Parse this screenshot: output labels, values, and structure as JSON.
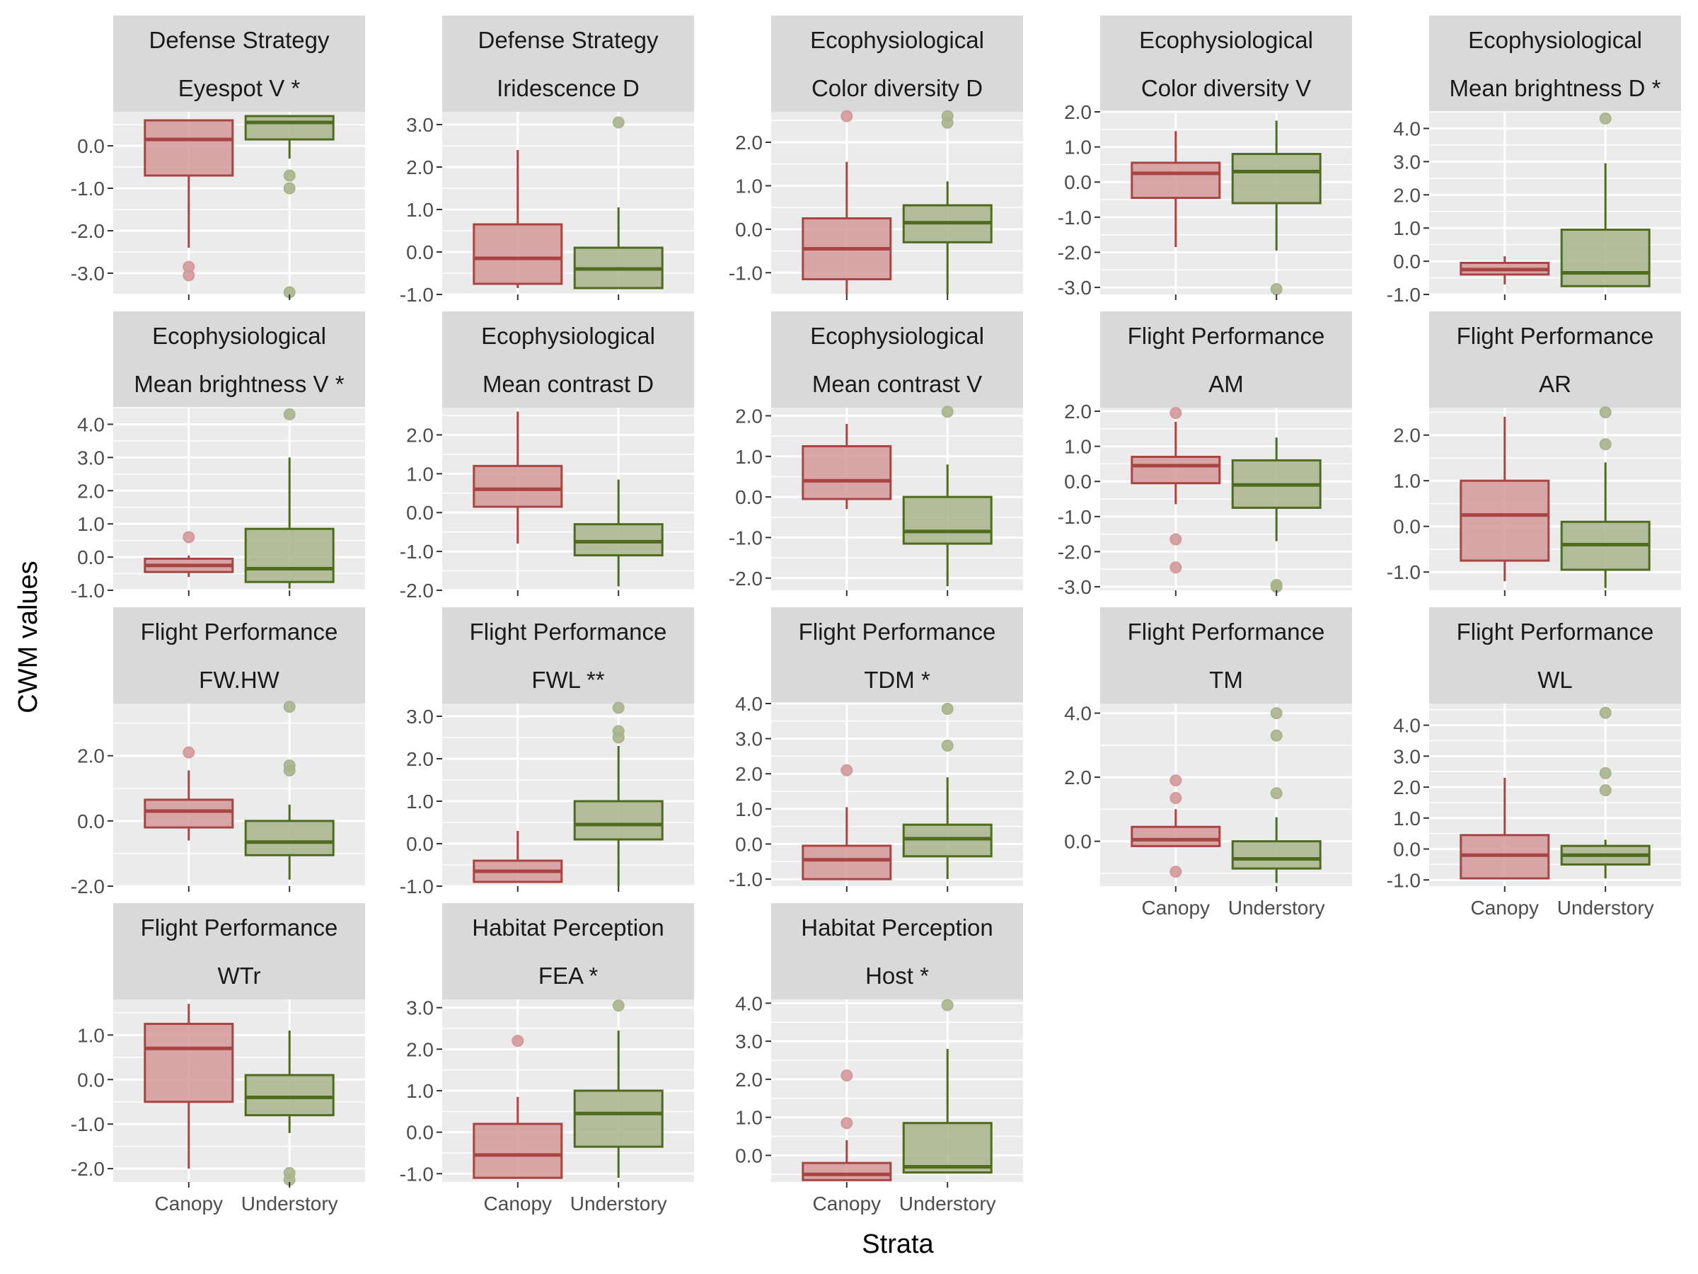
{
  "chart_data": {
    "type": "boxplot",
    "xlabel": "Strata",
    "ylabel": "CWM values",
    "categories": [
      "Canopy",
      "Understory"
    ],
    "colors": {
      "Canopy": {
        "stroke": "#a94442",
        "fill": "#d4999a"
      },
      "Understory": {
        "stroke": "#4e6b1e",
        "fill": "#a8b48c"
      }
    },
    "panels": [
      {
        "group": "Defense Strategy",
        "trait": "Eyespot V *",
        "ylim": [
          -3.5,
          0.8
        ],
        "yticks": [
          0,
          -1,
          -2,
          -3
        ],
        "ytick_labels": [
          "0.0",
          "-1.0",
          "-2.0",
          "-3.0"
        ],
        "boxes": [
          {
            "q1": -0.7,
            "median": 0.15,
            "q3": 0.6,
            "whisker_low": -2.4,
            "whisker_high": 0.6,
            "outliers": [
              -2.85,
              -3.05
            ]
          },
          {
            "q1": 0.15,
            "median": 0.55,
            "q3": 0.7,
            "whisker_low": -0.3,
            "whisker_high": 0.7,
            "outliers": [
              -0.7,
              -1.0,
              -3.45
            ]
          }
        ]
      },
      {
        "group": "Defense Strategy",
        "trait": "Iridescence D",
        "ylim": [
          -1.0,
          3.3
        ],
        "yticks": [
          3,
          2,
          1,
          0,
          -1
        ],
        "ytick_labels": [
          "3.0",
          "2.0",
          "1.0",
          "0.0",
          "-1.0"
        ],
        "boxes": [
          {
            "q1": -0.75,
            "median": -0.15,
            "q3": 0.65,
            "whisker_low": -0.85,
            "whisker_high": 2.4,
            "outliers": []
          },
          {
            "q1": -0.85,
            "median": -0.4,
            "q3": 0.1,
            "whisker_low": -0.85,
            "whisker_high": 1.05,
            "outliers": [
              3.05
            ]
          }
        ]
      },
      {
        "group": "Ecophysiological",
        "trait": "Color diversity D",
        "ylim": [
          -1.5,
          2.7
        ],
        "yticks": [
          2,
          1,
          0,
          -1
        ],
        "ytick_labels": [
          "2.0",
          "1.0",
          "0.0",
          "-1.0"
        ],
        "boxes": [
          {
            "q1": -1.15,
            "median": -0.45,
            "q3": 0.25,
            "whisker_low": -1.5,
            "whisker_high": 1.55,
            "outliers": [
              2.6
            ]
          },
          {
            "q1": -0.3,
            "median": 0.15,
            "q3": 0.55,
            "whisker_low": -1.5,
            "whisker_high": 1.1,
            "outliers": [
              2.6,
              2.45
            ]
          }
        ]
      },
      {
        "group": "Ecophysiological",
        "trait": "Color diversity V",
        "ylim": [
          -3.2,
          2.0
        ],
        "yticks": [
          2,
          1,
          0,
          -1,
          -2,
          -3
        ],
        "ytick_labels": [
          "2.0",
          "1.0",
          "0.0",
          "-1.0",
          "-2.0",
          "-3.0"
        ],
        "boxes": [
          {
            "q1": -0.45,
            "median": 0.25,
            "q3": 0.55,
            "whisker_low": -1.85,
            "whisker_high": 1.45,
            "outliers": []
          },
          {
            "q1": -0.6,
            "median": 0.3,
            "q3": 0.8,
            "whisker_low": -1.95,
            "whisker_high": 1.75,
            "outliers": [
              -3.05
            ]
          }
        ]
      },
      {
        "group": "Ecophysiological",
        "trait": "Mean brightness D *",
        "ylim": [
          -1.0,
          4.5
        ],
        "yticks": [
          4,
          3,
          2,
          1,
          0,
          -1
        ],
        "ytick_labels": [
          "4.0",
          "3.0",
          "2.0",
          "1.0",
          "0.0",
          "-1.0"
        ],
        "boxes": [
          {
            "q1": -0.4,
            "median": -0.25,
            "q3": -0.05,
            "whisker_low": -0.7,
            "whisker_high": 0.15,
            "outliers": []
          },
          {
            "q1": -0.75,
            "median": -0.35,
            "q3": 0.95,
            "whisker_low": -0.75,
            "whisker_high": 2.95,
            "outliers": [
              4.3
            ]
          }
        ]
      },
      {
        "group": "Ecophysiological",
        "trait": "Mean brightness V *",
        "ylim": [
          -1.0,
          4.5
        ],
        "yticks": [
          4,
          3,
          2,
          1,
          0,
          -1
        ],
        "ytick_labels": [
          "4.0",
          "3.0",
          "2.0",
          "1.0",
          "0.0",
          "-1.0"
        ],
        "boxes": [
          {
            "q1": -0.45,
            "median": -0.25,
            "q3": -0.05,
            "whisker_low": -0.6,
            "whisker_high": 0.05,
            "outliers": [
              0.6
            ]
          },
          {
            "q1": -0.75,
            "median": -0.35,
            "q3": 0.85,
            "whisker_low": -0.95,
            "whisker_high": 3.0,
            "outliers": [
              4.3
            ]
          }
        ]
      },
      {
        "group": "Ecophysiological",
        "trait": "Mean contrast D",
        "ylim": [
          -2.0,
          2.7
        ],
        "yticks": [
          2,
          1,
          0,
          -1,
          -2
        ],
        "ytick_labels": [
          "2.0",
          "1.0",
          "0.0",
          "-1.0",
          "-2.0"
        ],
        "boxes": [
          {
            "q1": 0.15,
            "median": 0.6,
            "q3": 1.2,
            "whisker_low": -0.8,
            "whisker_high": 2.6,
            "outliers": []
          },
          {
            "q1": -1.1,
            "median": -0.75,
            "q3": -0.3,
            "whisker_low": -1.9,
            "whisker_high": 0.85,
            "outliers": []
          }
        ]
      },
      {
        "group": "Ecophysiological",
        "trait": "Mean contrast V",
        "ylim": [
          -2.3,
          2.2
        ],
        "yticks": [
          2,
          1,
          0,
          -1,
          -2
        ],
        "ytick_labels": [
          "2.0",
          "1.0",
          "0.0",
          "-1.0",
          "-2.0"
        ],
        "boxes": [
          {
            "q1": -0.05,
            "median": 0.4,
            "q3": 1.25,
            "whisker_low": -0.3,
            "whisker_high": 1.8,
            "outliers": []
          },
          {
            "q1": -1.15,
            "median": -0.85,
            "q3": 0.0,
            "whisker_low": -2.2,
            "whisker_high": 0.8,
            "outliers": [
              2.1
            ]
          }
        ]
      },
      {
        "group": "Flight Performance",
        "trait": "AM",
        "ylim": [
          -3.1,
          2.1
        ],
        "yticks": [
          2,
          1,
          0,
          -1,
          -2,
          -3
        ],
        "ytick_labels": [
          "2.0",
          "1.0",
          "0.0",
          "-1.0",
          "-2.0",
          "-3.0"
        ],
        "boxes": [
          {
            "q1": -0.05,
            "median": 0.45,
            "q3": 0.7,
            "whisker_low": -0.65,
            "whisker_high": 1.7,
            "outliers": [
              1.95,
              -1.65,
              -2.45
            ]
          },
          {
            "q1": -0.75,
            "median": -0.1,
            "q3": 0.6,
            "whisker_low": -1.7,
            "whisker_high": 1.25,
            "outliers": [
              -2.95,
              -3.0
            ]
          }
        ]
      },
      {
        "group": "Flight Performance",
        "trait": "AR",
        "ylim": [
          -1.4,
          2.6
        ],
        "yticks": [
          2,
          1,
          0,
          -1
        ],
        "ytick_labels": [
          "2.0",
          "1.0",
          "0.0",
          "-1.0"
        ],
        "boxes": [
          {
            "q1": -0.75,
            "median": 0.25,
            "q3": 1.0,
            "whisker_low": -1.2,
            "whisker_high": 2.4,
            "outliers": []
          },
          {
            "q1": -0.95,
            "median": -0.4,
            "q3": 0.1,
            "whisker_low": -1.35,
            "whisker_high": 1.4,
            "outliers": [
              2.5,
              1.8
            ]
          }
        ]
      },
      {
        "group": "Flight Performance",
        "trait": "FW.HW",
        "ylim": [
          -2.0,
          3.6
        ],
        "yticks": [
          2,
          0,
          -2
        ],
        "ytick_labels": [
          "2.0",
          "0.0",
          "-2.0"
        ],
        "boxes": [
          {
            "q1": -0.2,
            "median": 0.3,
            "q3": 0.65,
            "whisker_low": -0.6,
            "whisker_high": 1.55,
            "outliers": [
              2.1
            ]
          },
          {
            "q1": -1.05,
            "median": -0.65,
            "q3": 0.0,
            "whisker_low": -1.8,
            "whisker_high": 0.5,
            "outliers": [
              3.5,
              1.7,
              1.55
            ]
          }
        ]
      },
      {
        "group": "Flight Performance",
        "trait": "FWL **",
        "ylim": [
          -1.0,
          3.3
        ],
        "yticks": [
          3,
          2,
          1,
          0,
          -1
        ],
        "ytick_labels": [
          "3.0",
          "2.0",
          "1.0",
          "0.0",
          "-1.0"
        ],
        "boxes": [
          {
            "q1": -0.9,
            "median": -0.65,
            "q3": -0.4,
            "whisker_low": -0.9,
            "whisker_high": 0.3,
            "outliers": []
          },
          {
            "q1": 0.1,
            "median": 0.45,
            "q3": 1.0,
            "whisker_low": -1.0,
            "whisker_high": 2.3,
            "outliers": [
              3.2,
              2.65,
              2.5
            ]
          }
        ]
      },
      {
        "group": "Flight Performance",
        "trait": "TDM *",
        "ylim": [
          -1.2,
          4.0
        ],
        "yticks": [
          4,
          3,
          2,
          1,
          0,
          -1
        ],
        "ytick_labels": [
          "4.0",
          "3.0",
          "2.0",
          "1.0",
          "0.0",
          "-1.0"
        ],
        "boxes": [
          {
            "q1": -1.0,
            "median": -0.45,
            "q3": -0.05,
            "whisker_low": -1.0,
            "whisker_high": 1.05,
            "outliers": [
              2.1
            ]
          },
          {
            "q1": -0.35,
            "median": 0.15,
            "q3": 0.55,
            "whisker_low": -1.0,
            "whisker_high": 1.9,
            "outliers": [
              3.85,
              2.8
            ]
          }
        ]
      },
      {
        "group": "Flight Performance",
        "trait": "TM",
        "ylim": [
          -1.4,
          4.3
        ],
        "yticks": [
          4,
          2,
          0
        ],
        "ytick_labels": [
          "4.0",
          "2.0",
          "0.0"
        ],
        "boxes": [
          {
            "q1": -0.15,
            "median": 0.05,
            "q3": 0.45,
            "whisker_low": -0.15,
            "whisker_high": 1.0,
            "outliers": [
              1.9,
              1.35,
              -0.95
            ]
          },
          {
            "q1": -0.85,
            "median": -0.55,
            "q3": 0.0,
            "whisker_low": -1.3,
            "whisker_high": 0.75,
            "outliers": [
              4.0,
              3.3,
              1.5
            ]
          }
        ]
      },
      {
        "group": "Flight Performance",
        "trait": "WL",
        "ylim": [
          -1.2,
          4.7
        ],
        "yticks": [
          4,
          3,
          2,
          1,
          0,
          -1
        ],
        "ytick_labels": [
          "4.0",
          "3.0",
          "2.0",
          "1.0",
          "0.0",
          "-1.0"
        ],
        "boxes": [
          {
            "q1": -0.95,
            "median": -0.2,
            "q3": 0.45,
            "whisker_low": -0.95,
            "whisker_high": 2.3,
            "outliers": []
          },
          {
            "q1": -0.5,
            "median": -0.2,
            "q3": 0.1,
            "whisker_low": -0.95,
            "whisker_high": 0.3,
            "outliers": [
              4.4,
              2.45,
              1.9
            ]
          }
        ]
      },
      {
        "group": "Flight Performance",
        "trait": "WTr",
        "ylim": [
          -2.3,
          1.8
        ],
        "yticks": [
          1,
          0,
          -1,
          -2
        ],
        "ytick_labels": [
          "1.0",
          "0.0",
          "-1.0",
          "-2.0"
        ],
        "boxes": [
          {
            "q1": -0.5,
            "median": 0.7,
            "q3": 1.25,
            "whisker_low": -2.0,
            "whisker_high": 1.7,
            "outliers": []
          },
          {
            "q1": -0.8,
            "median": -0.4,
            "q3": 0.1,
            "whisker_low": -1.2,
            "whisker_high": 1.1,
            "outliers": [
              -2.1,
              -2.25
            ]
          }
        ]
      },
      {
        "group": "Habitat Perception",
        "trait": "FEA *",
        "ylim": [
          -1.2,
          3.2
        ],
        "yticks": [
          3,
          2,
          1,
          0,
          -1
        ],
        "ytick_labels": [
          "3.0",
          "2.0",
          "1.0",
          "0.0",
          "-1.0"
        ],
        "boxes": [
          {
            "q1": -1.1,
            "median": -0.55,
            "q3": 0.2,
            "whisker_low": -1.1,
            "whisker_high": 0.85,
            "outliers": [
              2.2
            ]
          },
          {
            "q1": -0.35,
            "median": 0.45,
            "q3": 1.0,
            "whisker_low": -1.1,
            "whisker_high": 2.45,
            "outliers": [
              3.05
            ]
          }
        ]
      },
      {
        "group": "Habitat Perception",
        "trait": "Host *",
        "ylim": [
          -0.7,
          4.1
        ],
        "yticks": [
          4,
          3,
          2,
          1,
          0
        ],
        "ytick_labels": [
          "4.0",
          "3.0",
          "2.0",
          "1.0",
          "0.0"
        ],
        "boxes": [
          {
            "q1": -0.65,
            "median": -0.5,
            "q3": -0.2,
            "whisker_low": -0.65,
            "whisker_high": 0.4,
            "outliers": [
              2.1,
              0.85
            ]
          },
          {
            "q1": -0.45,
            "median": -0.3,
            "q3": 0.85,
            "whisker_low": -0.45,
            "whisker_high": 2.8,
            "outliers": [
              3.95
            ]
          }
        ]
      }
    ]
  }
}
